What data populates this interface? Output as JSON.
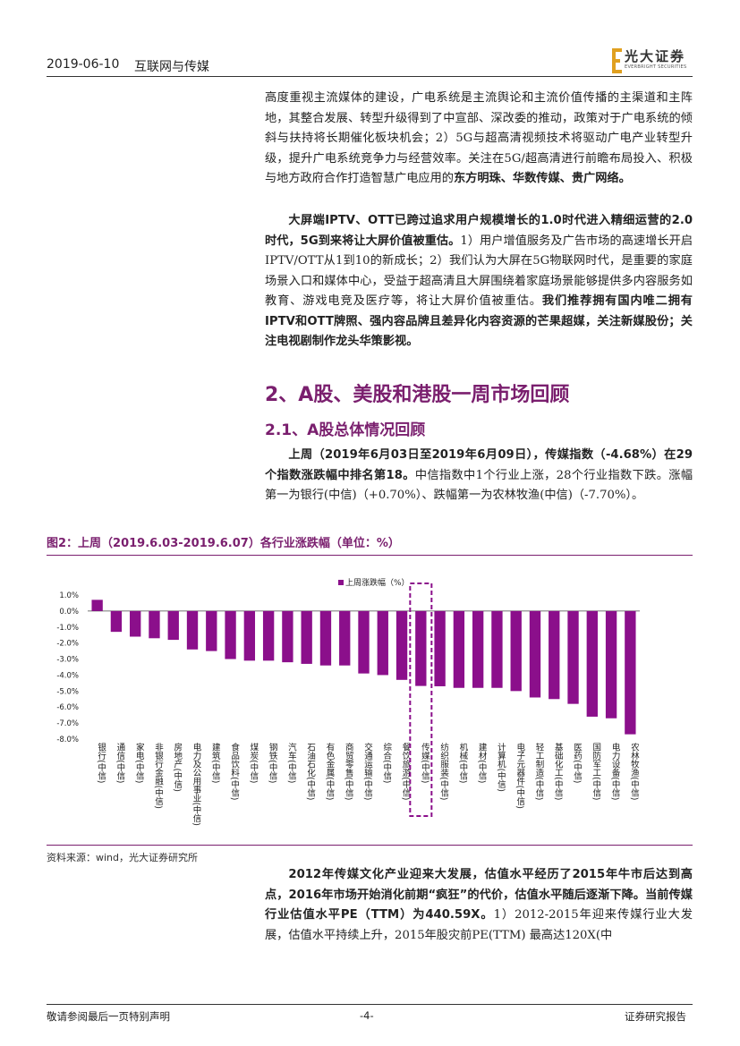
{
  "header": {
    "date": "2019-06-10",
    "sector": "互联网与传媒"
  },
  "logo": {
    "name": "光大证券",
    "sub": "EVERBRIGHT SECURITIES",
    "colors": {
      "accent": "#e0a020"
    }
  },
  "paragraphs": {
    "p1": "高度重视主流媒体的建设，广电系统是主流舆论和主流价值传播的主渠道和主阵地，其整合发展、转型升级得到了中宣部、深改委的推动，政策对于广电系统的倾斜与扶持将长期催化板块机会；2）5G与超高清视频技术将驱动广电产业转型升级，提升广电系统竞争力与经营效率。关注在5G/超高清进行前瞻布局投入、积极与地方政府合作打造智慧广电应用的",
    "p1_bold": "东方明珠、华数传媒、贵广网络。",
    "p2_bold": "大屏端IPTV、OTT已跨过追求用户规模增长的1.0时代进入精细运营的2.0时代，5G到来将让大屏价值被重估。",
    "p2": "1）用户增值服务及广告市场的高速增长开启IPTV/OTT从1到10的新成长；2）我们认为大屏在5G物联网时代，是重要的家庭场景入口和媒体中心，受益于超高清且大屏围绕着家庭场景能够提供多内容服务如教育、游戏电竞及医疗等，将让大屏价值被重估。",
    "p2_bold2": "我们推荐拥有国内唯二拥有IPTV和OTT牌照、强内容品牌且差异化内容资源的芒果超媒，关注新媒股份；关注电视剧制作龙头华策影视。",
    "p3_bold": "上周（2019年6月03日至2019年6月09日），传媒指数（-4.68%）在29个指数涨跌幅中排名第18。",
    "p3": "中信指数中1个行业上涨，28个行业指数下跌。涨幅第一为银行(中信)（+0.70%）、跌幅第一为农林牧渔(中信)（-7.70%）。",
    "p4_bold": "2012年传媒文化产业迎来大发展，估值水平经历了2015年牛市后达到高点，2016年市场开始消化前期“疯狂”的代价，估值水平随后逐渐下降。当前传媒行业估值水平PE（TTM）为440.59X。",
    "p4": "1）2012-2015年迎来传媒行业大发展，估值水平持续上升，2015年股灾前PE(TTM) 最高达120X(中"
  },
  "headings": {
    "h1": "2、A股、美股和港股一周市场回顾",
    "h2": "2.1、A股总体情况回顾"
  },
  "figure": {
    "title": "图2：上周（2019.6.03-2019.6.07）各行业涨跌幅（单位：%）",
    "source": "资料来源：wind，光大证券研究所"
  },
  "chart_data": {
    "type": "bar",
    "legend": "上周涨跌幅（%）",
    "highlight_category": "传媒(中信)",
    "ylim": [
      -8.0,
      1.0
    ],
    "yticks": [
      "1.0%",
      "0.0%",
      "-1.0%",
      "-2.0%",
      "-3.0%",
      "-4.0%",
      "-5.0%",
      "-6.0%",
      "-7.0%",
      "-8.0%"
    ],
    "categories": [
      "银行(中信)",
      "通信(中信)",
      "家电(中信)",
      "非银行金融(中信)",
      "房地产(中信)",
      "电力及公用事业(中信)",
      "建筑(中信)",
      "食品饮料(中信)",
      "煤炭(中信)",
      "钢铁(中信)",
      "汽车(中信)",
      "石油石化(中信)",
      "有色金属(中信)",
      "商贸零售(中信)",
      "交通运输(中信)",
      "综合(中信)",
      "餐饮旅游(中信)",
      "传媒(中信)",
      "纺织服装(中信)",
      "机械(中信)",
      "建材(中信)",
      "计算机(中信)",
      "电子元器件(中信)",
      "轻工制造(中信)",
      "基础化工(中信)",
      "医药(中信)",
      "国防军工(中信)",
      "电力设备(中信)",
      "农林牧渔(中信)"
    ],
    "values": [
      0.7,
      -1.3,
      -1.6,
      -1.7,
      -1.8,
      -2.4,
      -2.5,
      -3.0,
      -3.1,
      -3.1,
      -3.2,
      -3.3,
      -3.4,
      -3.4,
      -3.9,
      -4.0,
      -4.3,
      -4.68,
      -4.7,
      -4.8,
      -4.8,
      -4.8,
      -5.0,
      -5.4,
      -5.5,
      -5.8,
      -6.6,
      -6.7,
      -7.7
    ],
    "colors": {
      "bar": "#8b0f8b",
      "highlight_box": "#8b0f8b"
    }
  },
  "footer": {
    "left": "敬请参阅最后一页特别声明",
    "page": "-4-",
    "right": "证券研究报告"
  }
}
